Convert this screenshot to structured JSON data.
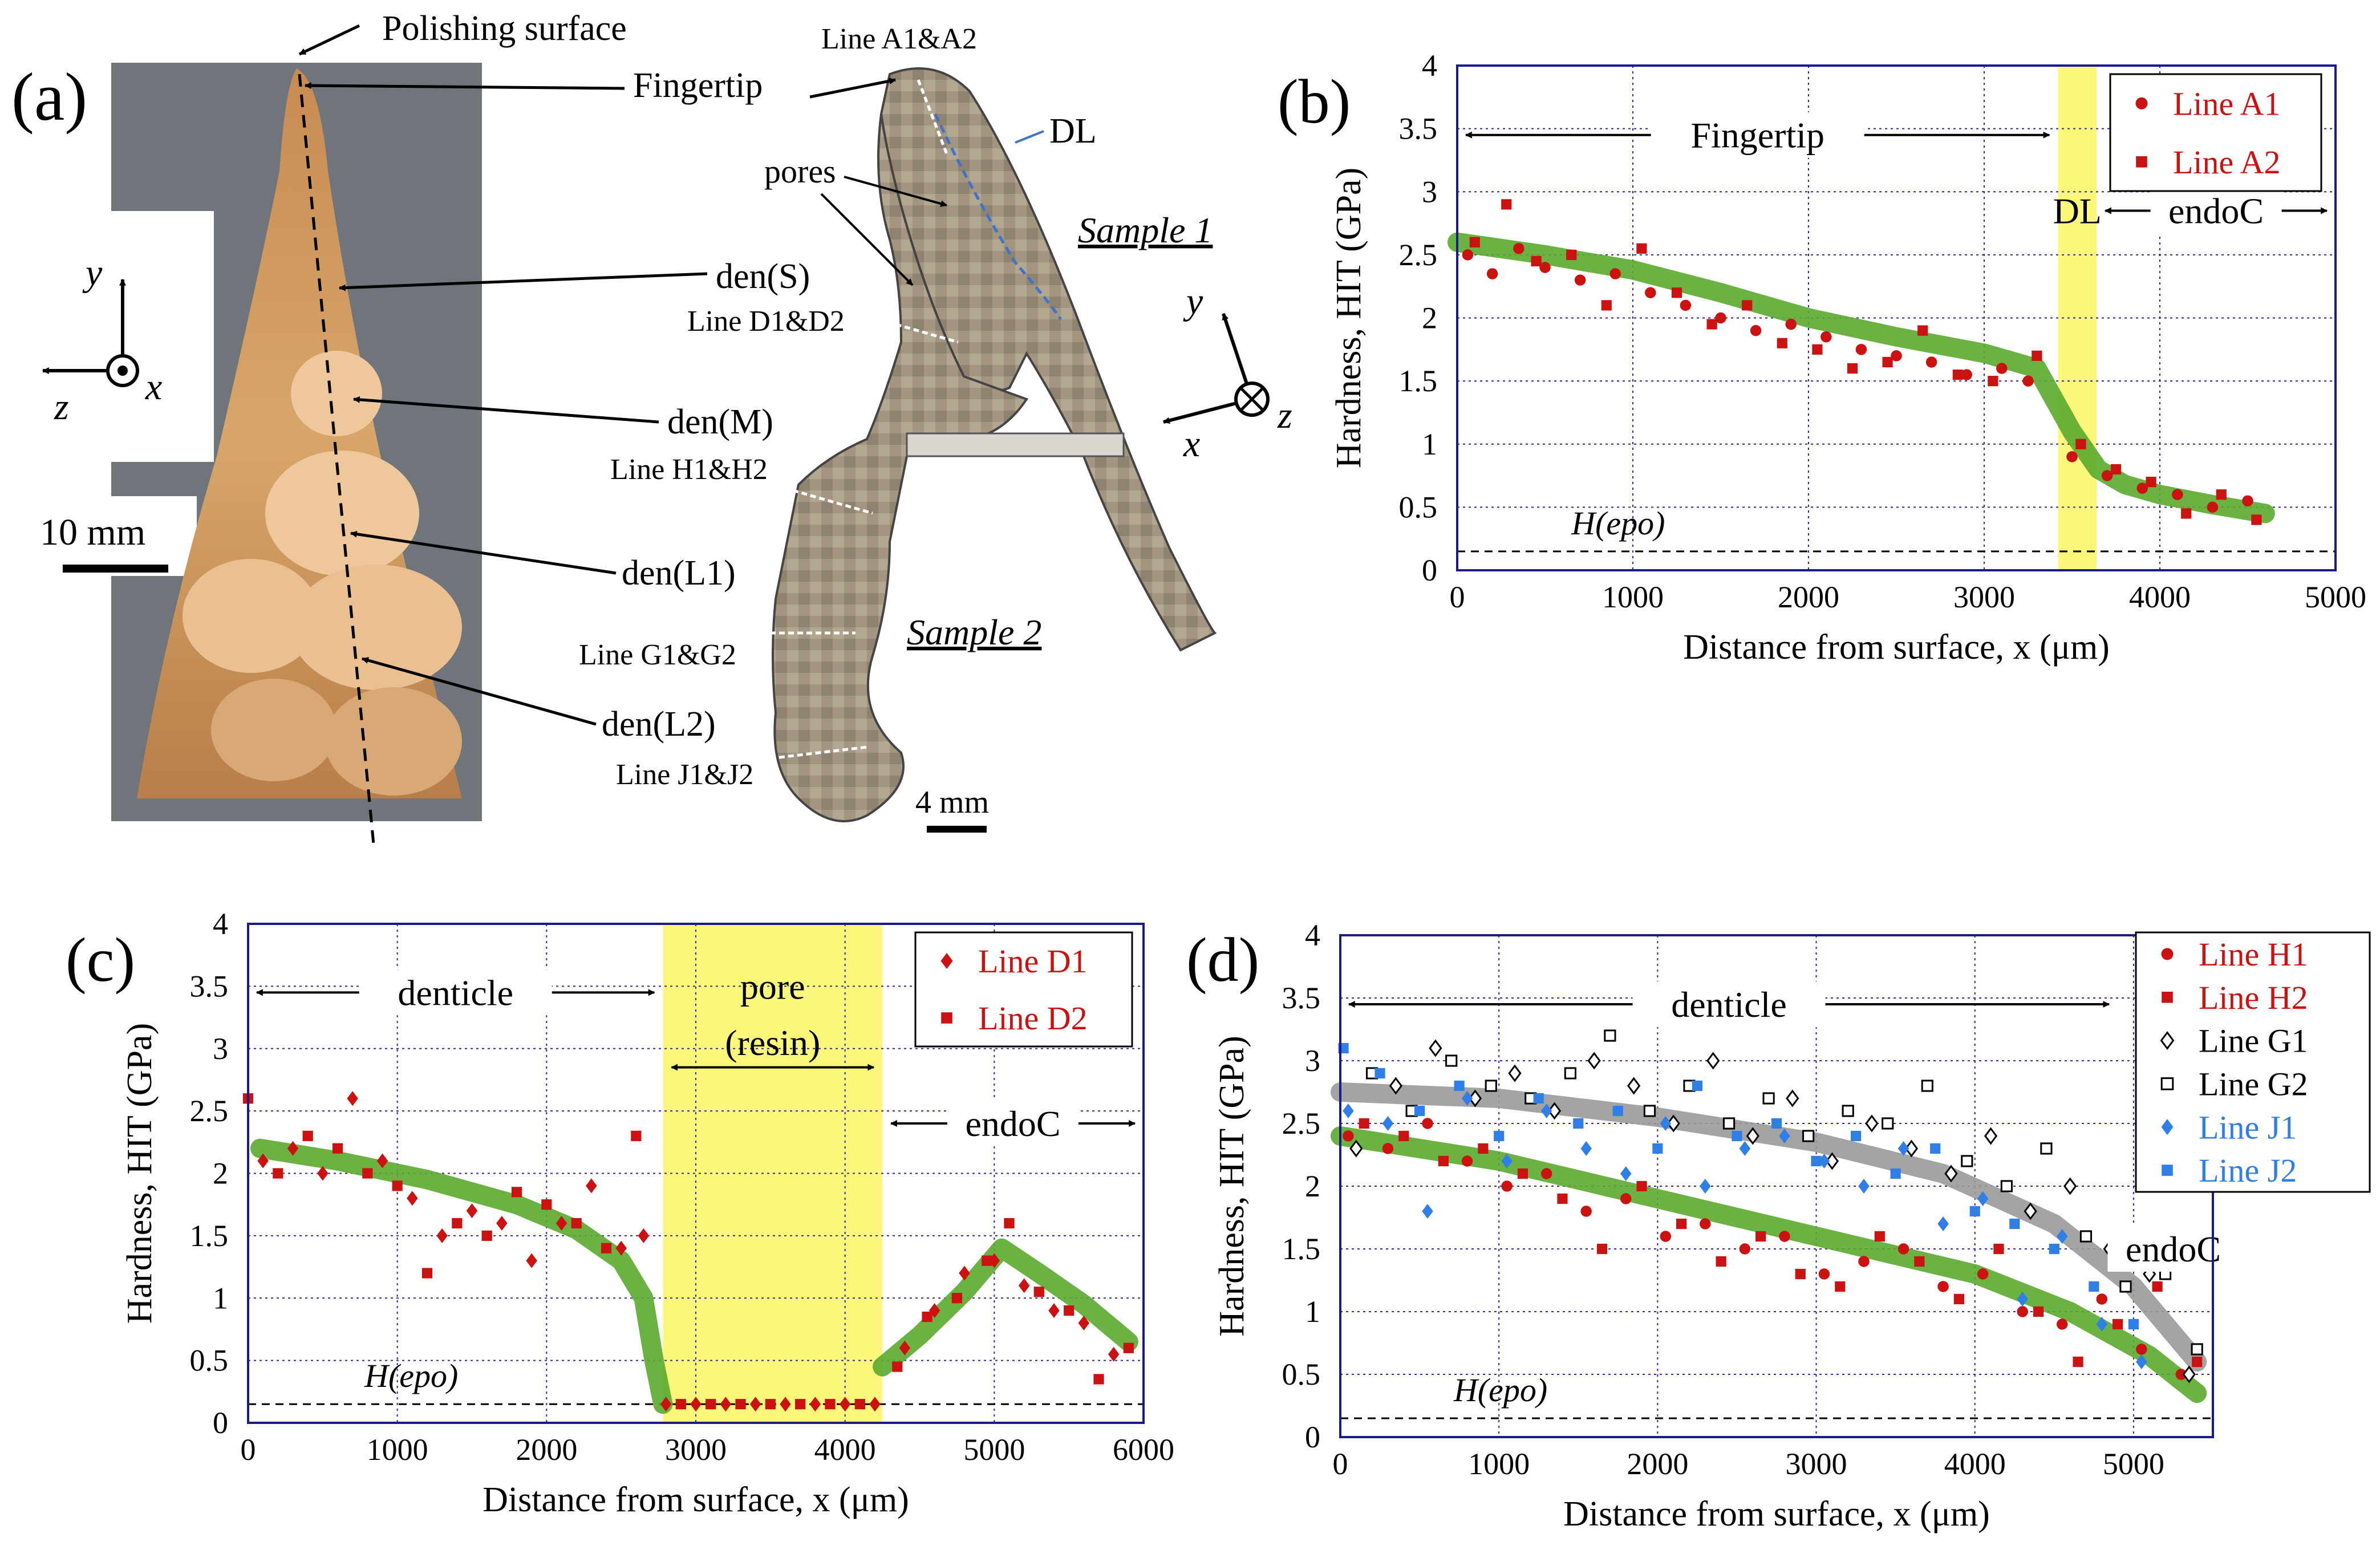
{
  "panel_a": {
    "label": "(a)",
    "photo_labels": {
      "polishing": "Polishing surface",
      "fingertip": "Fingertip",
      "den_s": "den(S)",
      "den_m": "den(M)",
      "den_l1": "den(L1)",
      "den_l2": "den(L2)",
      "axis_y": "y",
      "axis_z": "z",
      "axis_x": "x",
      "scale": "10 mm"
    },
    "section_labels": {
      "line_a": "Line A1&A2",
      "dl": "DL",
      "pores": "pores",
      "sample1": "Sample 1",
      "line_d": "Line D1&D2",
      "line_h": "Line H1&H2",
      "sample2": "Sample 2",
      "line_g": "Line G1&G2",
      "line_j": "Line J1&J2",
      "scale": "4 mm",
      "axis_y": "y",
      "axis_x": "x",
      "axis_z": "z"
    }
  },
  "colors": {
    "red": "#cc1111",
    "blue": "#2f7fe6",
    "green": "#5aaa2e",
    "gray": "#9a9a9a",
    "yellow": "#fbf77a",
    "grid": "#2a2a9a"
  },
  "chart_data": [
    {
      "id": "b",
      "panel_label": "(b)",
      "type": "scatter",
      "xlabel": "Distance from surface,  x (μm)",
      "ylabel": "Hardness, HIT (GPa)",
      "xlim": [
        0,
        5000
      ],
      "ylim": [
        0,
        4
      ],
      "xticks": [
        "0",
        "1000",
        "2000",
        "3000",
        "4000",
        "5000"
      ],
      "yticks": [
        "0",
        "0.5",
        "1",
        "1.5",
        "2",
        "2.5",
        "3",
        "3.5",
        "4"
      ],
      "epoxy_level": 0.15,
      "epoxy_label": "H(epo)",
      "shaded_regions": [
        {
          "x": [
            3420,
            3640
          ],
          "label": "DL"
        }
      ],
      "annotations": [
        {
          "text": "Fingertip",
          "x0": 0,
          "x1": 3420,
          "y": 3.45
        },
        {
          "text": "endoC",
          "x0": 3640,
          "x1": 5000,
          "y": 2.85
        }
      ],
      "legend": {
        "position": "top-right",
        "entries": [
          {
            "label": "Line A1",
            "marker": "circle"
          },
          {
            "label": "Line A2",
            "marker": "square"
          }
        ]
      },
      "trend": {
        "color": "green",
        "x": [
          0,
          500,
          1000,
          1500,
          2000,
          2500,
          3000,
          3300,
          3500,
          3650,
          3800,
          4000,
          4300,
          4600
        ],
        "y": [
          2.6,
          2.5,
          2.38,
          2.2,
          2.0,
          1.85,
          1.72,
          1.6,
          1.1,
          0.8,
          0.68,
          0.6,
          0.52,
          0.45
        ]
      },
      "series": [
        {
          "name": "Line A1",
          "color": "red",
          "marker": "circle",
          "x": [
            60,
            200,
            350,
            500,
            700,
            900,
            1100,
            1300,
            1500,
            1700,
            1900,
            2100,
            2300,
            2500,
            2700,
            2900,
            3100,
            3250,
            3500,
            3700,
            3900,
            4100,
            4300,
            4500
          ],
          "y": [
            2.5,
            2.35,
            2.55,
            2.4,
            2.3,
            2.35,
            2.2,
            2.1,
            2.0,
            1.9,
            1.95,
            1.85,
            1.75,
            1.7,
            1.65,
            1.55,
            1.6,
            1.5,
            0.9,
            0.75,
            0.65,
            0.6,
            0.5,
            0.55
          ]
        },
        {
          "name": "Line A2",
          "color": "red",
          "marker": "square",
          "x": [
            100,
            280,
            450,
            650,
            850,
            1050,
            1250,
            1450,
            1650,
            1850,
            2050,
            2250,
            2450,
            2650,
            2850,
            3050,
            3300,
            3550,
            3750,
            3950,
            4150,
            4350,
            4550
          ],
          "y": [
            2.6,
            2.9,
            2.45,
            2.5,
            2.1,
            2.55,
            2.2,
            1.95,
            2.1,
            1.8,
            1.75,
            1.6,
            1.65,
            1.9,
            1.55,
            1.5,
            1.7,
            1.0,
            0.8,
            0.7,
            0.45,
            0.6,
            0.4
          ]
        }
      ]
    },
    {
      "id": "c",
      "panel_label": "(c)",
      "type": "scatter",
      "xlabel": "Distance from surface,  x (μm)",
      "ylabel": "Hardness, HIT (GPa)",
      "xlim": [
        0,
        6000
      ],
      "ylim": [
        0,
        4
      ],
      "xticks": [
        "0",
        "1000",
        "2000",
        "3000",
        "4000",
        "5000",
        "6000"
      ],
      "yticks": [
        "0",
        "0.5",
        "1",
        "1.5",
        "2",
        "2.5",
        "3",
        "3.5",
        "4"
      ],
      "epoxy_level": 0.15,
      "epoxy_label": "H(epo)",
      "shaded_regions": [
        {
          "x": [
            2780,
            4250
          ],
          "label_line1": "pore",
          "label_line2": "(resin)"
        }
      ],
      "annotations": [
        {
          "text": "denticle",
          "x0": 0,
          "x1": 2780,
          "y": 3.45
        },
        {
          "text": "endoC",
          "x0": 4250,
          "x1": 6000,
          "y": 2.4
        }
      ],
      "legend": {
        "position": "top-right",
        "entries": [
          {
            "label": "Line D1",
            "marker": "diamond"
          },
          {
            "label": "Line D2",
            "marker": "square"
          }
        ]
      },
      "trend": {
        "color": "green",
        "segments": [
          {
            "x": [
              80,
              600,
              1200,
              1800,
              2200,
              2500,
              2650,
              2720,
              2780
            ],
            "y": [
              2.2,
              2.1,
              1.95,
              1.75,
              1.55,
              1.3,
              1.0,
              0.5,
              0.15
            ]
          },
          {
            "x": [
              4250,
              4500,
              4800,
              5050,
              5300,
              5600,
              5900
            ],
            "y": [
              0.45,
              0.7,
              1.05,
              1.4,
              1.2,
              0.95,
              0.65
            ]
          }
        ]
      },
      "series": [
        {
          "name": "Line D1",
          "color": "red",
          "marker": "diamond",
          "x": [
            100,
            300,
            500,
            700,
            900,
            1100,
            1300,
            1500,
            1700,
            1900,
            2100,
            2300,
            2500,
            2650,
            2800,
            3000,
            3200,
            3400,
            3600,
            3800,
            4000,
            4200,
            4400,
            4600,
            4800,
            5000,
            5200,
            5400,
            5600,
            5800
          ],
          "y": [
            2.1,
            2.2,
            2.0,
            2.6,
            2.1,
            1.8,
            1.5,
            1.7,
            1.6,
            1.3,
            1.6,
            1.9,
            1.4,
            1.5,
            0.15,
            0.15,
            0.15,
            0.15,
            0.15,
            0.15,
            0.15,
            0.15,
            0.6,
            0.9,
            1.2,
            1.3,
            1.1,
            0.9,
            0.8,
            0.55
          ]
        },
        {
          "name": "Line D2",
          "color": "red",
          "marker": "square",
          "x": [
            0,
            200,
            400,
            600,
            800,
            1000,
            1200,
            1400,
            1600,
            1800,
            2000,
            2200,
            2400,
            2600,
            2900,
            3100,
            3300,
            3500,
            3700,
            3900,
            4100,
            4350,
            4550,
            4750,
            4950,
            5100,
            5300,
            5500,
            5700,
            5900
          ],
          "y": [
            2.6,
            2.0,
            2.3,
            2.2,
            2.0,
            1.9,
            1.2,
            1.6,
            1.5,
            1.85,
            1.75,
            1.6,
            1.4,
            2.3,
            0.15,
            0.15,
            0.15,
            0.15,
            0.15,
            0.15,
            0.15,
            0.45,
            0.85,
            1.0,
            1.3,
            1.6,
            1.05,
            0.9,
            0.35,
            0.6
          ]
        }
      ]
    },
    {
      "id": "d",
      "panel_label": "(d)",
      "type": "scatter",
      "xlabel": "Distance from surface,  x (μm)",
      "ylabel": "Hardness, HIT (GPa)",
      "xlim": [
        0,
        5500
      ],
      "ylim": [
        0,
        4
      ],
      "xticks": [
        "0",
        "1000",
        "2000",
        "3000",
        "4000",
        "5000"
      ],
      "yticks": [
        "0",
        "0.5",
        "1",
        "1.5",
        "2",
        "2.5",
        "3",
        "3.5",
        "4"
      ],
      "epoxy_level": 0.15,
      "epoxy_label": "H(epo)",
      "shaded_regions": [],
      "annotations": [
        {
          "text": "denticle",
          "x0": 0,
          "x1": 4900,
          "y": 3.45
        },
        {
          "text": "endoC",
          "x0": 5000,
          "x1": 5500,
          "y": 1.5
        }
      ],
      "legend": {
        "position": "top-right",
        "entries": [
          {
            "label": "Line H1",
            "marker": "circle",
            "color": "red"
          },
          {
            "label": "Line H2",
            "marker": "square",
            "color": "red"
          },
          {
            "label": "Line G1",
            "marker": "open-diamond",
            "color": "black"
          },
          {
            "label": "Line G2",
            "marker": "open-square",
            "color": "black"
          },
          {
            "label": "Line J1",
            "marker": "diamond",
            "color": "blue"
          },
          {
            "label": "Line J2",
            "marker": "square",
            "color": "blue"
          }
        ]
      },
      "trends": [
        {
          "color": "gray",
          "x": [
            0,
            1000,
            2000,
            3000,
            3800,
            4500,
            5000,
            5400
          ],
          "y": [
            2.75,
            2.7,
            2.55,
            2.35,
            2.1,
            1.7,
            1.2,
            0.6
          ]
        },
        {
          "color": "green",
          "x": [
            0,
            1000,
            2000,
            3000,
            4000,
            4600,
            5100,
            5400
          ],
          "y": [
            2.4,
            2.2,
            1.9,
            1.6,
            1.3,
            1.0,
            0.65,
            0.35
          ]
        }
      ],
      "series": [
        {
          "name": "Line H1",
          "color": "red",
          "marker": "circle",
          "x": [
            50,
            300,
            550,
            800,
            1050,
            1300,
            1550,
            1800,
            2050,
            2300,
            2550,
            2800,
            3050,
            3300,
            3550,
            3800,
            4050,
            4300,
            4550,
            4800,
            5050,
            5300
          ],
          "y": [
            2.4,
            2.3,
            2.5,
            2.2,
            2.0,
            2.1,
            1.8,
            1.9,
            1.6,
            1.7,
            1.5,
            1.6,
            1.3,
            1.4,
            1.5,
            1.2,
            1.3,
            1.0,
            0.9,
            1.1,
            0.7,
            0.5
          ]
        },
        {
          "name": "Line H2",
          "color": "red",
          "marker": "square",
          "x": [
            150,
            400,
            650,
            900,
            1150,
            1400,
            1650,
            1900,
            2150,
            2400,
            2650,
            2900,
            3150,
            3400,
            3650,
            3900,
            4150,
            4400,
            4650,
            4900,
            5150,
            5400
          ],
          "y": [
            2.5,
            2.4,
            2.2,
            2.3,
            2.1,
            1.9,
            1.5,
            2.0,
            1.7,
            1.4,
            1.6,
            1.3,
            1.2,
            1.6,
            1.4,
            1.1,
            1.5,
            1.0,
            0.6,
            0.9,
            1.2,
            0.6
          ]
        },
        {
          "name": "Line G1",
          "color": "black",
          "marker": "open-diamond",
          "x": [
            100,
            350,
            600,
            850,
            1100,
            1350,
            1600,
            1850,
            2100,
            2350,
            2600,
            2850,
            3100,
            3350,
            3600,
            3850,
            4100,
            4350,
            4600,
            4850,
            5100,
            5350
          ],
          "y": [
            2.3,
            2.8,
            3.1,
            2.7,
            2.9,
            2.6,
            3.0,
            2.8,
            2.5,
            3.0,
            2.4,
            2.7,
            2.2,
            2.5,
            2.3,
            2.1,
            2.4,
            1.8,
            2.0,
            1.5,
            1.3,
            0.5
          ]
        },
        {
          "name": "Line G2",
          "color": "black",
          "marker": "open-square",
          "x": [
            200,
            450,
            700,
            950,
            1200,
            1450,
            1700,
            1950,
            2200,
            2450,
            2700,
            2950,
            3200,
            3450,
            3700,
            3950,
            4200,
            4450,
            4700,
            4950,
            5200,
            5400
          ],
          "y": [
            2.9,
            2.6,
            3.0,
            2.8,
            2.7,
            2.9,
            3.2,
            2.6,
            2.8,
            2.5,
            2.7,
            2.4,
            2.6,
            2.5,
            2.8,
            2.2,
            2.0,
            2.3,
            1.6,
            1.2,
            1.3,
            0.7
          ]
        },
        {
          "name": "Line J1",
          "color": "blue",
          "marker": "diamond",
          "x": [
            50,
            300,
            550,
            800,
            1050,
            1300,
            1550,
            1800,
            2050,
            2300,
            2550,
            2800,
            3050,
            3300,
            3550,
            3800,
            4050,
            4300,
            4550,
            4800,
            5050
          ],
          "y": [
            2.6,
            2.5,
            1.8,
            2.7,
            2.2,
            2.6,
            2.3,
            2.1,
            2.5,
            2.0,
            2.3,
            2.4,
            2.2,
            2.0,
            2.3,
            1.7,
            1.9,
            1.1,
            1.6,
            0.9,
            0.6
          ]
        },
        {
          "name": "Line J2",
          "color": "blue",
          "marker": "square",
          "x": [
            20,
            250,
            500,
            750,
            1000,
            1250,
            1500,
            1750,
            2000,
            2250,
            2500,
            2750,
            3000,
            3250,
            3500,
            3750,
            4000,
            4250,
            4500,
            4750,
            5000
          ],
          "y": [
            3.1,
            2.9,
            2.6,
            2.8,
            2.4,
            2.7,
            2.5,
            2.6,
            2.3,
            2.8,
            2.4,
            2.5,
            2.2,
            2.4,
            2.1,
            2.3,
            1.8,
            1.7,
            1.5,
            1.2,
            0.9
          ]
        }
      ]
    }
  ]
}
